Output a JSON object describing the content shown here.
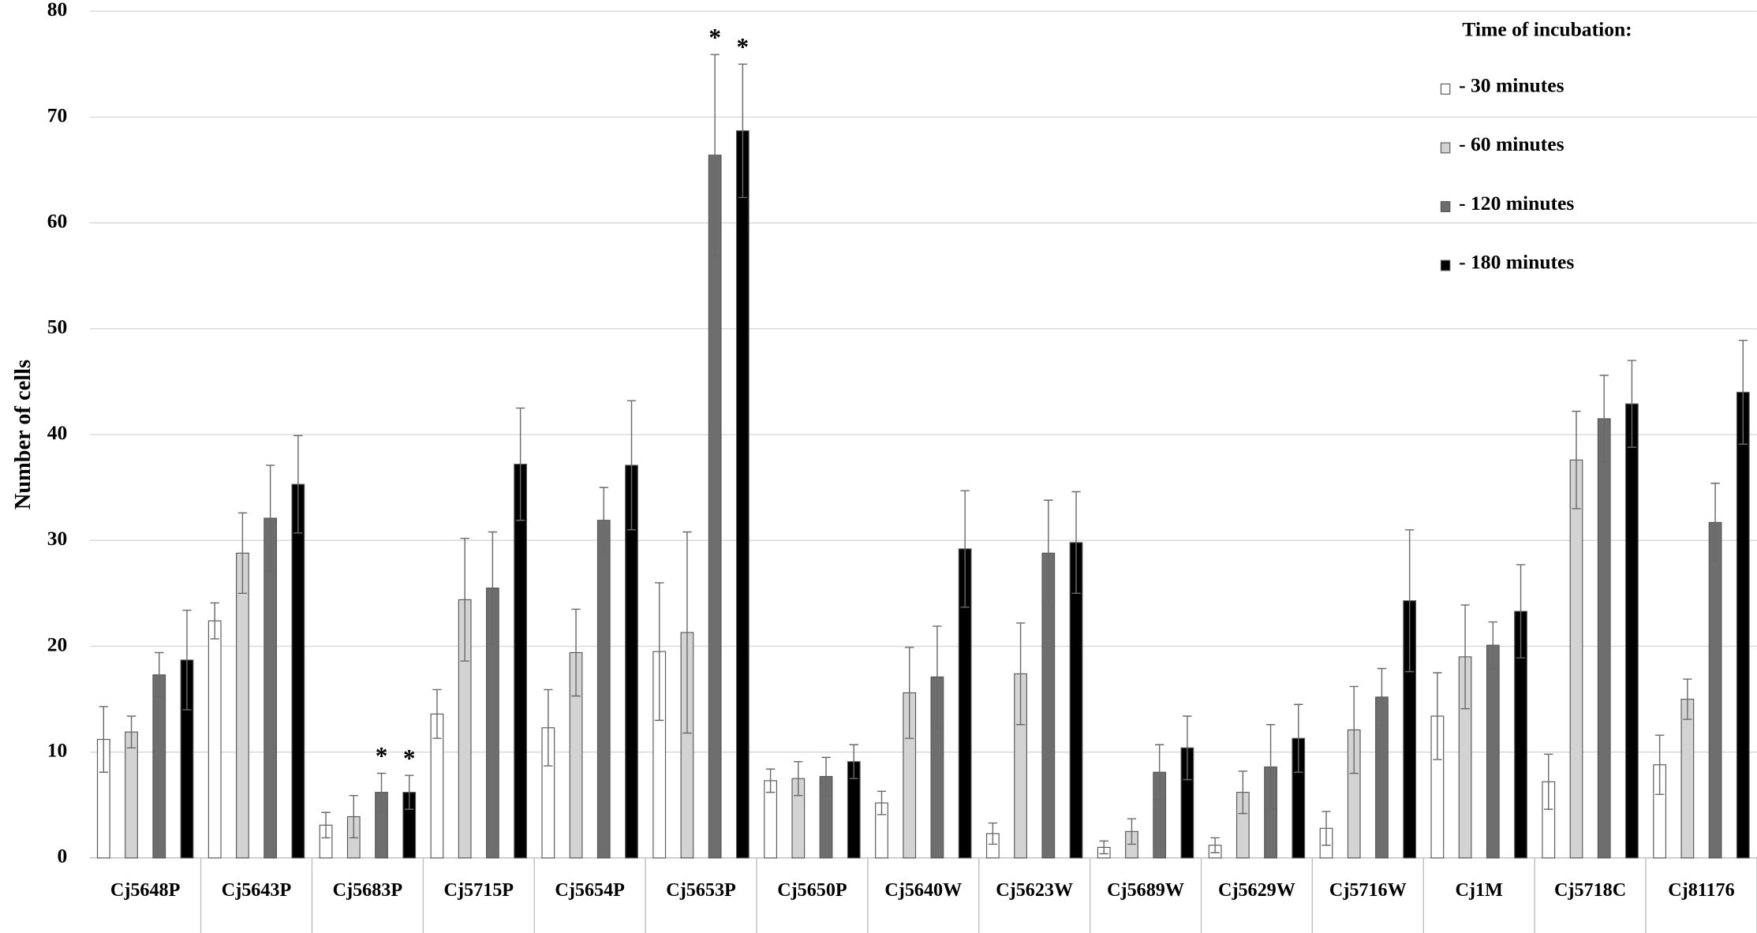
{
  "chart_data": {
    "type": "bar",
    "y_label": "Number of cells",
    "legend_title": "Time of incubation:",
    "legend_position": "top-right",
    "grid": true,
    "ylim": [
      0,
      80
    ],
    "yticks": [
      0,
      10,
      20,
      30,
      40,
      50,
      60,
      70,
      80
    ],
    "categories": [
      "Cj5648P",
      "Cj5643P",
      "Cj5683P",
      "Cj5715P",
      "Cj5654P",
      "Cj5653P",
      "Cj5650P",
      "Cj5640W",
      "Cj5623W",
      "Cj5689W",
      "Cj5629W",
      "Cj5716W",
      "Cj1M",
      "Cj5718C",
      "Cj81176"
    ],
    "series": [
      {
        "name": "- 30 minutes",
        "color": "#ffffff",
        "values": [
          11.2,
          22.4,
          3.1,
          13.6,
          12.3,
          19.5,
          7.3,
          5.2,
          2.3,
          1.0,
          1.2,
          2.8,
          13.4,
          7.2,
          8.8
        ],
        "errors": [
          3.1,
          1.7,
          1.2,
          2.3,
          3.6,
          6.5,
          1.1,
          1.1,
          1.0,
          0.6,
          0.7,
          1.6,
          4.1,
          2.6,
          2.8
        ]
      },
      {
        "name": "- 60 minutes",
        "color": "#d3d3d3",
        "values": [
          11.9,
          28.8,
          3.9,
          24.4,
          19.4,
          21.3,
          7.5,
          15.6,
          17.4,
          2.5,
          6.2,
          12.1,
          19.0,
          37.6,
          15.0
        ],
        "errors": [
          1.5,
          3.8,
          2.0,
          5.8,
          4.1,
          9.5,
          1.6,
          4.3,
          4.8,
          1.2,
          2.0,
          4.1,
          4.9,
          4.6,
          1.9
        ]
      },
      {
        "name": "- 120 minutes",
        "color": "#6e6e6e",
        "values": [
          17.3,
          32.1,
          6.2,
          25.5,
          31.9,
          66.4,
          7.7,
          17.1,
          28.8,
          8.1,
          8.6,
          15.2,
          20.1,
          41.5,
          31.7
        ],
        "errors": [
          2.1,
          5.0,
          1.8,
          5.3,
          3.1,
          9.5,
          1.8,
          4.8,
          5.0,
          2.6,
          4.0,
          2.7,
          2.2,
          4.1,
          3.7
        ]
      },
      {
        "name": "- 180 minutes",
        "color": "#000000",
        "values": [
          18.7,
          35.3,
          6.2,
          37.2,
          37.1,
          68.7,
          9.1,
          29.2,
          29.8,
          10.4,
          11.3,
          24.3,
          23.3,
          42.9,
          44.0
        ],
        "errors": [
          4.7,
          4.6,
          1.6,
          5.3,
          6.1,
          6.3,
          1.6,
          5.5,
          4.8,
          3.0,
          3.2,
          6.7,
          4.4,
          4.1,
          4.9
        ]
      }
    ],
    "annotations": [
      {
        "text": "*",
        "category": "Cj5683P",
        "series": "- 120 minutes"
      },
      {
        "text": "*",
        "category": "Cj5683P",
        "series": "- 180 minutes"
      },
      {
        "text": "*",
        "category": "Cj5653P",
        "series": "- 120 minutes"
      },
      {
        "text": "*",
        "category": "Cj5653P",
        "series": "- 180 minutes"
      }
    ]
  }
}
